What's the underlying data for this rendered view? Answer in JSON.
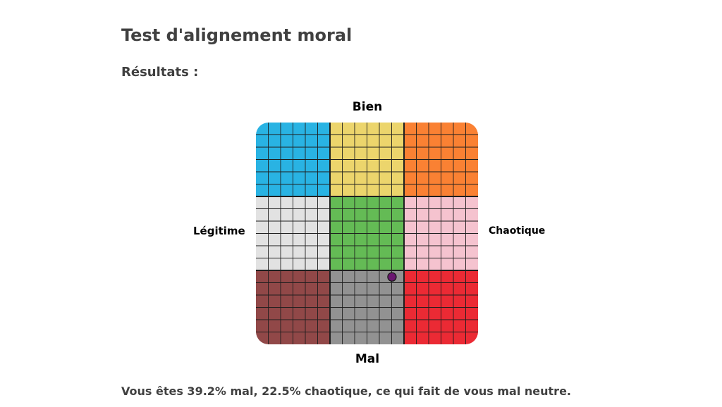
{
  "page": {
    "title": "Test d'alignement moral",
    "results_heading": "Résultats :",
    "result_sentence": "Vous êtes 39.2% mal, 22.5% chaotique, ce qui fait de vous mal neutre."
  },
  "chart_data": {
    "type": "scatter",
    "axes": {
      "top": "Bien",
      "bottom": "Mal",
      "left": "Légitime",
      "right": "Chaotique"
    },
    "xlim": [
      -100,
      100
    ],
    "ylim": [
      -100,
      100
    ],
    "grid": true,
    "cells_per_region": 6,
    "regions": [
      {
        "row": 0,
        "col": 0,
        "color": "#29b3e3"
      },
      {
        "row": 0,
        "col": 1,
        "color": "#ecd56c"
      },
      {
        "row": 0,
        "col": 2,
        "color": "#fa8133"
      },
      {
        "row": 1,
        "col": 0,
        "color": "#e2e2e2"
      },
      {
        "row": 1,
        "col": 1,
        "color": "#64bb55"
      },
      {
        "row": 1,
        "col": 2,
        "color": "#f5c3cf"
      },
      {
        "row": 2,
        "col": 0,
        "color": "#914848"
      },
      {
        "row": 2,
        "col": 1,
        "color": "#929292"
      },
      {
        "row": 2,
        "col": 2,
        "color": "#eb2a34"
      }
    ],
    "marker": {
      "x": 22.5,
      "y": -39.2,
      "color": "#6b1670"
    }
  }
}
